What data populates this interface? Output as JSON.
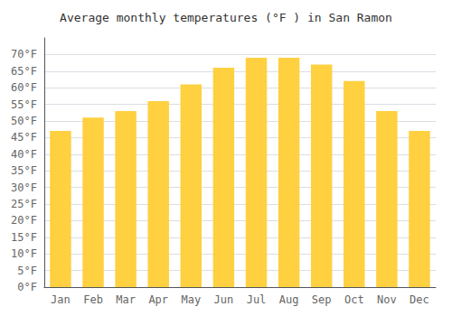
{
  "chart_data": {
    "type": "bar",
    "title": "Average monthly temperatures (°F ) in San Ramon",
    "categories": [
      "Jan",
      "Feb",
      "Mar",
      "Apr",
      "May",
      "Jun",
      "Jul",
      "Aug",
      "Sep",
      "Oct",
      "Nov",
      "Dec"
    ],
    "values": [
      47,
      51,
      53,
      56,
      61,
      66,
      69,
      69,
      67,
      62,
      53,
      47
    ],
    "color": "#FFD040",
    "ylim": [
      0,
      75
    ],
    "yticks": [
      {
        "value": 0,
        "label": "0°F"
      },
      {
        "value": 5,
        "label": "5°F"
      },
      {
        "value": 10,
        "label": "10°F"
      },
      {
        "value": 15,
        "label": "15°F"
      },
      {
        "value": 20,
        "label": "20°F"
      },
      {
        "value": 25,
        "label": "25°F"
      },
      {
        "value": 30,
        "label": "30°F"
      },
      {
        "value": 35,
        "label": "35°F"
      },
      {
        "value": 40,
        "label": "40°F"
      },
      {
        "value": 45,
        "label": "45°F"
      },
      {
        "value": 50,
        "label": "50°F"
      },
      {
        "value": 55,
        "label": "55°F"
      },
      {
        "value": 60,
        "label": "60°F"
      },
      {
        "value": 65,
        "label": "65°F"
      },
      {
        "value": 70,
        "label": "70°F"
      }
    ],
    "grid": true
  }
}
